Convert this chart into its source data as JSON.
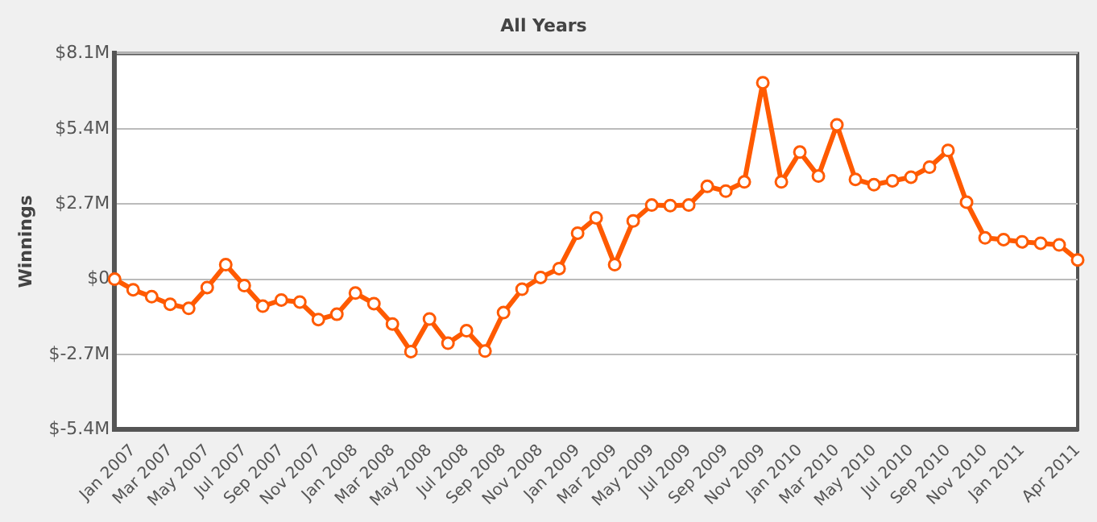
{
  "chart_data": {
    "type": "line",
    "title": "All Years",
    "ylabel": "Winnings",
    "categories": [
      null,
      "Jan 2007",
      null,
      "Mar 2007",
      null,
      "May 2007",
      null,
      "Jul 2007",
      null,
      "Sep 2007",
      null,
      "Nov 2007",
      null,
      "Jan 2008",
      null,
      "Mar 2008",
      null,
      "May 2008",
      null,
      "Jul 2008",
      null,
      "Sep 2008",
      null,
      "Nov 2008",
      null,
      "Jan 2009",
      null,
      "Mar 2009",
      null,
      "May 2009",
      null,
      "Jul 2009",
      null,
      "Sep 2009",
      null,
      "Nov 2009",
      null,
      "Jan 2010",
      null,
      "Mar 2010",
      null,
      "May 2010",
      null,
      "Jul 2010",
      null,
      "Sep 2010",
      null,
      "Nov 2010",
      null,
      "Jan 2011",
      null,
      null,
      "Apr 2011"
    ],
    "series": [
      {
        "color": "#ff5a00",
        "values": [
          0,
          -0.38,
          -0.63,
          -0.9,
          -1.05,
          -0.3,
          0.52,
          -0.23,
          -0.97,
          -0.75,
          -0.82,
          -1.45,
          -1.26,
          -0.5,
          -0.88,
          -1.61,
          -2.6,
          -1.43,
          -2.3,
          -1.85,
          -2.58,
          -1.2,
          -0.36,
          0.06,
          0.38,
          1.65,
          2.2,
          0.52,
          2.09,
          2.66,
          2.64,
          2.66,
          3.33,
          3.16,
          3.49,
          7.05,
          3.49,
          4.56,
          3.7,
          5.54,
          3.58,
          3.39,
          3.53,
          3.66,
          4.02,
          4.62,
          2.76,
          1.48,
          1.42,
          1.34,
          1.29,
          1.23,
          0.69
        ]
      }
    ],
    "ylim": [
      -5.4,
      8.1
    ],
    "yticks": [
      {
        "value": -5.4,
        "label": "$-5.4M"
      },
      {
        "value": -2.7,
        "label": "$-2.7M"
      },
      {
        "value": 0,
        "label": "$0"
      },
      {
        "value": 2.7,
        "label": "$2.7M"
      },
      {
        "value": 5.4,
        "label": "$5.4M"
      },
      {
        "value": 8.1,
        "label": "$8.1M"
      }
    ],
    "grid": "y",
    "legend": false,
    "marker": "circle",
    "line_style": "solid"
  }
}
